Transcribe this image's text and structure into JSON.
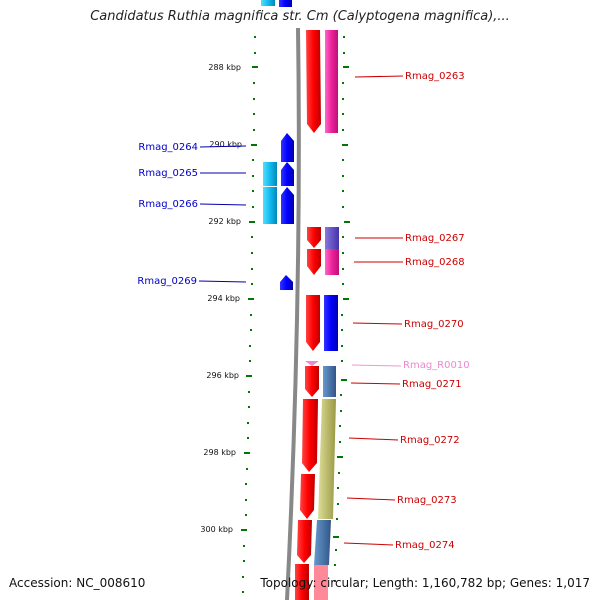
{
  "title": "Candidatus Ruthia magnifica str. Cm (Calyptogena magnifica),...",
  "scale_labels": [
    "288 kbp",
    "290 kbp",
    "292 kbp",
    "294 kbp",
    "296 kbp",
    "298 kbp",
    "300 kbp"
  ],
  "genes_left": [
    {
      "name": "Rmag_0264",
      "color": "#0000cc"
    },
    {
      "name": "Rmag_0265",
      "color": "#0000cc"
    },
    {
      "name": "Rmag_0266",
      "color": "#0000cc"
    },
    {
      "name": "Rmag_0269",
      "color": "#0000cc"
    }
  ],
  "genes_right": [
    {
      "name": "Rmag_0263",
      "color": "#cc0000"
    },
    {
      "name": "Rmag_0267",
      "color": "#cc0000"
    },
    {
      "name": "Rmag_0268",
      "color": "#cc0000"
    },
    {
      "name": "Rmag_0270",
      "color": "#cc0000"
    },
    {
      "name": "Rmag_R0010",
      "color": "#ee88cc"
    },
    {
      "name": "Rmag_0271",
      "color": "#cc0000"
    },
    {
      "name": "Rmag_0272",
      "color": "#cc0000"
    },
    {
      "name": "Rmag_0273",
      "color": "#cc0000"
    },
    {
      "name": "Rmag_0274",
      "color": "#cc0000"
    }
  ],
  "colors": {
    "forward_strand": "#ff0000",
    "reverse_strand": "#0000ff",
    "cog_pink": "#ee2299",
    "cog_cyan": "#11bbee",
    "cog_purple": "#6655cc",
    "cog_steel": "#4477aa",
    "cog_olive": "#bbbb66",
    "backbone": "#888888",
    "ticks": "#007700"
  },
  "footer": {
    "accession": "Accession: NC_008610",
    "summary": "Topology: circular; Length: 1,160,782 bp; Genes: 1,017"
  }
}
